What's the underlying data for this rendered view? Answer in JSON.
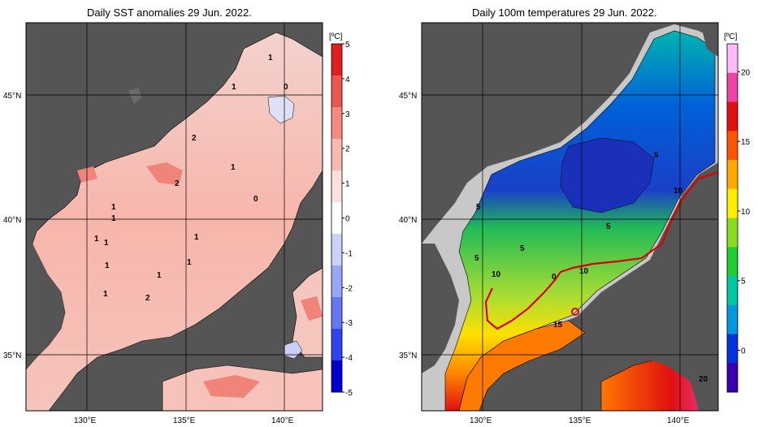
{
  "panels": {
    "left": {
      "title": "Daily SST anomalies 29 Jun. 2022.",
      "colorbar": {
        "unit": "[ºC]",
        "ticks": [
          "5",
          "4",
          "3",
          "2",
          "1",
          "0",
          "-1",
          "-2",
          "-3",
          "-4",
          "-5"
        ],
        "colors": [
          "#0000cc",
          "#3344ee",
          "#6677f2",
          "#99a6f6",
          "#ccd2fa",
          "#ffffff",
          "#fde0dc",
          "#f9b8b0",
          "#f48a80",
          "#ec5650",
          "#e01e1e"
        ]
      },
      "lon_labels": [
        "130°E",
        "135°E",
        "140°E"
      ],
      "lat_labels": [
        "45°N",
        "40°N",
        "35°N"
      ],
      "contour_labels": [
        "1",
        "1",
        "0",
        "2",
        "1",
        "2",
        "0",
        "1",
        "1",
        "1",
        "1",
        "1",
        "1",
        "1",
        "1",
        "1",
        "2"
      ]
    },
    "right": {
      "title": "Daily 100m temperatures 29 Jun. 2022.",
      "colorbar": {
        "unit": "[ºC]",
        "ticks": [
          "20",
          "15",
          "10",
          "5",
          "0"
        ],
        "colors": [
          "#3a00b0",
          "#0033dd",
          "#0099dd",
          "#00c8a0",
          "#22cc33",
          "#88dd22",
          "#ffee00",
          "#ffaa00",
          "#ff5500",
          "#e01010",
          "#ee44aa",
          "#ffbbff"
        ]
      },
      "lon_labels": [
        "130°E",
        "135°E",
        "140°E"
      ],
      "lat_labels": [
        "45°N",
        "40°N",
        "35°N"
      ],
      "contour_labels": [
        "5",
        "10",
        "5",
        "5",
        "5",
        "5",
        "10",
        "10",
        "0",
        "15",
        "20"
      ]
    }
  },
  "colors": {
    "land": "#555555",
    "shallow": "#c8c8c8",
    "frame": "#000000",
    "isotherm_10": "#dd0000"
  }
}
